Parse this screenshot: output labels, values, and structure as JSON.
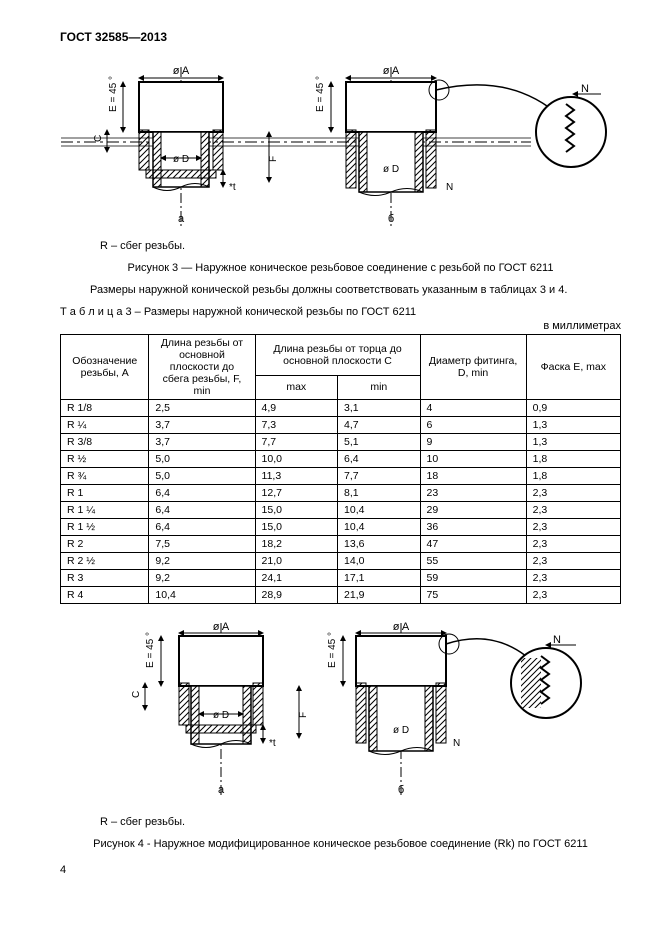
{
  "doc_header": "ГОСТ 32585—2013",
  "fig3": {
    "note": "R – сбег резьбы.",
    "caption": "Рисунок 3 — Наружное коническое резьбовое соединение с резьбой по ГОСТ 6211",
    "label_a": "а",
    "label_b": "б",
    "label_diaA": "ø A",
    "label_diaD": "ø D",
    "label_N": "N",
    "label_E45": "E = 45 °",
    "label_C": "C",
    "label_F": "F",
    "label_t": "*t"
  },
  "body_text1": "Размеры наружной конической резьбы должны соответствовать указанным в таблицах 3 и 4.",
  "table3": {
    "title": "Т а б л и ц а   3  – Размеры наружной конической резьбы по ГОСТ 6211",
    "units": "в миллиметрах",
    "head": {
      "c1": "Обозначение резьбы, A",
      "c2": "Длина резьбы от основной плоскости до сбега резьбы, F, min",
      "c3": "Длина резьбы от торца до основной плоскости C",
      "c3a": "max",
      "c3b": "min",
      "c4": "Диаметр фитинга, D, min",
      "c5": "Фаска E, max"
    },
    "rows": [
      [
        "R 1/8",
        "2,5",
        "4,9",
        "3,1",
        "4",
        "0,9"
      ],
      [
        "R ¼",
        "3,7",
        "7,3",
        "4,7",
        "6",
        "1,3"
      ],
      [
        "R 3/8",
        "3,7",
        "7,7",
        "5,1",
        "9",
        "1,3"
      ],
      [
        "R ½",
        "5,0",
        "10,0",
        "6,4",
        "10",
        "1,8"
      ],
      [
        "R ¾",
        "5,0",
        "11,3",
        "7,7",
        "18",
        "1,8"
      ],
      [
        "R 1",
        "6,4",
        "12,7",
        "8,1",
        "23",
        "2,3"
      ],
      [
        "R 1 ¼",
        "6,4",
        "15,0",
        "10,4",
        "29",
        "2,3"
      ],
      [
        "R 1 ½",
        "6,4",
        "15,0",
        "10,4",
        "36",
        "2,3"
      ],
      [
        "R 2",
        "7,5",
        "18,2",
        "13,6",
        "47",
        "2,3"
      ],
      [
        "R 2 ½",
        "9,2",
        "21,0",
        "14,0",
        "55",
        "2,3"
      ],
      [
        "R 3",
        "9,2",
        "24,1",
        "17,1",
        "59",
        "2,3"
      ],
      [
        "R 4",
        "10,4",
        "28,9",
        "21,9",
        "75",
        "2,3"
      ]
    ]
  },
  "fig4": {
    "note": "R – сбег резьбы.",
    "caption": "Рисунок 4 - Наружное модифицированное коническое резьбовое соединение (Rk) по ГОСТ 6211",
    "label_a": "а",
    "label_b": "б"
  },
  "page_number": "4"
}
